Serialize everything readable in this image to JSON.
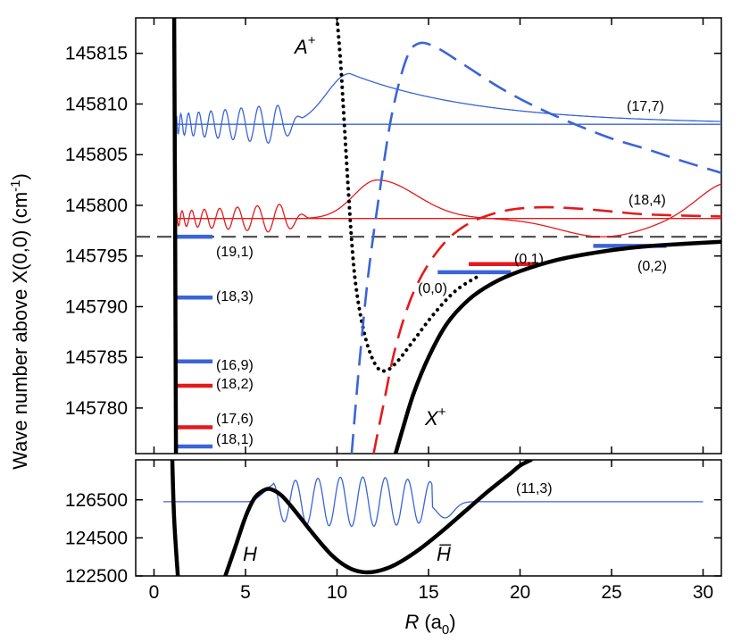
{
  "chart_data": [
    {
      "type": "line",
      "panel": "upper",
      "ylabel": "Wave number above X(0,0) (cm⁻¹)",
      "ylim": [
        145775.5,
        145818.5
      ],
      "xlim": [
        -1,
        31
      ],
      "yticks": [
        145780,
        145785,
        145790,
        145795,
        145800,
        145805,
        145810,
        145815
      ],
      "ytick_labels": [
        "145780",
        "145785",
        "145790",
        "145795",
        "145800",
        "145805",
        "145810",
        "145815"
      ],
      "dashed_reference": {
        "y": 145796.9,
        "color": "#555555"
      },
      "curves": [
        {
          "label": "A⁺",
          "style": "dotted",
          "color": "#000000",
          "points": [
            [
              10.0,
              145818.5
            ],
            [
              10.2,
              145814
            ],
            [
              10.4,
              145808
            ],
            [
              10.6,
              145802
            ],
            [
              10.8,
              145796.5
            ],
            [
              11.0,
              145792.5
            ],
            [
              11.3,
              145789
            ],
            [
              11.7,
              145786
            ],
            [
              12.2,
              145784
            ],
            [
              12.7,
              145783.7
            ],
            [
              13.3,
              145784.6
            ],
            [
              14.2,
              145786.7
            ],
            [
              15.3,
              145789.3
            ],
            [
              16.5,
              145791.6
            ],
            [
              17.8,
              145793.1
            ]
          ]
        },
        {
          "label": "X⁺",
          "style": "solid-thick",
          "color": "#000000",
          "points": [
            [
              13.2,
              145775.5
            ],
            [
              13.6,
              145778
            ],
            [
              14.2,
              145781.5
            ],
            [
              15.0,
              145785
            ],
            [
              16.0,
              145788.3
            ],
            [
              17.2,
              145790.7
            ],
            [
              18.5,
              145792.3
            ],
            [
              20.0,
              145793.5
            ],
            [
              22.0,
              145794.6
            ],
            [
              24.0,
              145795.3
            ],
            [
              26.0,
              145795.8
            ],
            [
              28.0,
              145796.1
            ],
            [
              31.0,
              145796.4
            ]
          ]
        },
        {
          "label": "",
          "style": "solid-thick",
          "color": "#000000",
          "points": [
            [
              1.1,
              145818.5
            ],
            [
              1.15,
              145800
            ],
            [
              1.2,
              145775.5
            ]
          ]
        },
        {
          "label": "",
          "style": "dashed",
          "color": "#3a64d8",
          "points": [
            [
              10.8,
              145775.5
            ],
            [
              11.2,
              145784
            ],
            [
              11.7,
              145793
            ],
            [
              12.3,
              145801
            ],
            [
              13.0,
              145809
            ],
            [
              13.8,
              145814.5
            ],
            [
              14.5,
              145816
            ],
            [
              15.5,
              145815.5
            ],
            [
              17.0,
              145813.8
            ],
            [
              19.0,
              145811.5
            ],
            [
              21.0,
              145809.6
            ],
            [
              23.0,
              145808
            ],
            [
              25.0,
              145806.6
            ],
            [
              27.0,
              145805.5
            ],
            [
              29.0,
              145804.3
            ],
            [
              31.0,
              145803.2
            ]
          ]
        },
        {
          "label": "",
          "style": "dashed",
          "color": "#e31a1c",
          "points": [
            [
              12.0,
              145775.5
            ],
            [
              12.5,
              145780
            ],
            [
              13.2,
              145786
            ],
            [
              14.2,
              145791.5
            ],
            [
              15.5,
              145795.5
            ],
            [
              17.0,
              145798
            ],
            [
              19.0,
              145799.4
            ],
            [
              21.0,
              145799.8
            ],
            [
              23.0,
              145799.7
            ],
            [
              25.0,
              145799.4
            ],
            [
              27.0,
              145799.1
            ],
            [
              31.0,
              145798.9
            ]
          ]
        }
      ],
      "eigenstates": [
        {
          "label": "(17,7)",
          "color": "#3a64d8",
          "energy": 145808,
          "wavefunction": {
            "x_start": 1.2,
            "x_end": 31.0,
            "peak_x": 10.7,
            "peak_amp": 5.0,
            "osc_end": 8.2,
            "osc_amp": 2.2,
            "osc_count": 9.5,
            "decay": 7.0
          }
        },
        {
          "label": "(18,4)",
          "color": "#e31a1c",
          "energy": 145798.7,
          "wavefunction": {
            "x_start": 1.2,
            "x_end": 31.0,
            "peak_x": 12.2,
            "peak_amp": 3.8,
            "osc_end": 8.5,
            "osc_amp": 1.6,
            "osc_count": 8.5,
            "far_amp": 3.6
          }
        },
        {
          "label": "(19,1)",
          "color": "#3a64d8",
          "energy": 145796.9,
          "x_range": [
            1.2,
            3.2
          ]
        },
        {
          "label": "(18,3)",
          "color": "#3a64d8",
          "energy": 145790.9,
          "x_range": [
            1.2,
            3.2
          ]
        },
        {
          "label": "(16,9)",
          "color": "#3a64d8",
          "energy": 145784.6,
          "x_range": [
            1.2,
            3.2
          ]
        },
        {
          "label": "(18,2)",
          "color": "#e31a1c",
          "energy": 145782.2,
          "x_range": [
            1.2,
            3.2
          ]
        },
        {
          "label": "(17,6)",
          "color": "#e31a1c",
          "energy": 145778.1,
          "x_range": [
            1.2,
            3.2
          ]
        },
        {
          "label": "(18,1)",
          "color": "#3a64d8",
          "energy": 145776.2,
          "x_range": [
            1.2,
            3.2
          ]
        },
        {
          "label": "(0,0)",
          "color": "#3a64d8",
          "energy": 145793.4,
          "x_range": [
            15.5,
            19.5
          ]
        },
        {
          "label": "(0,1)",
          "color": "#e31a1c",
          "energy": 145794.2,
          "x_range": [
            17.2,
            21.0
          ]
        },
        {
          "label": "(0,2)",
          "color": "#3a64d8",
          "energy": 145796.0,
          "x_range": [
            24.0,
            28.0
          ]
        }
      ]
    },
    {
      "type": "line",
      "panel": "lower",
      "xlabel": "R (a₀)",
      "xlim": [
        -1,
        31
      ],
      "ylim": [
        122500,
        128600
      ],
      "xticks": [
        0,
        5,
        10,
        15,
        20,
        25,
        30
      ],
      "xtick_labels": [
        "0",
        "5",
        "10",
        "15",
        "20",
        "25",
        "30"
      ],
      "yticks": [
        122500,
        124500,
        126500
      ],
      "ytick_labels": [
        "122500",
        "124500",
        "126500"
      ],
      "curves": [
        {
          "label": "H H̅",
          "style": "solid-thick",
          "color": "#000000",
          "points": [
            [
              3.9,
              122500
            ],
            [
              4.4,
              123900
            ],
            [
              5.0,
              125600
            ],
            [
              5.5,
              126600
            ],
            [
              6.0,
              127000
            ],
            [
              6.4,
              127050
            ],
            [
              7.0,
              126700
            ],
            [
              7.8,
              125800
            ],
            [
              8.7,
              124700
            ],
            [
              9.7,
              123600
            ],
            [
              10.6,
              122950
            ],
            [
              11.4,
              122700
            ],
            [
              12.2,
              122750
            ],
            [
              13.2,
              123100
            ],
            [
              14.5,
              123900
            ],
            [
              15.8,
              124900
            ],
            [
              17.0,
              125900
            ],
            [
              18.2,
              126900
            ],
            [
              19.5,
              127900
            ],
            [
              20.0,
              128300
            ],
            [
              20.6,
              128600
            ]
          ]
        },
        {
          "label": "",
          "style": "solid-thick",
          "color": "#000000",
          "points": [
            [
              1.0,
              128600
            ],
            [
              1.1,
              125500
            ],
            [
              1.3,
              122500
            ]
          ]
        }
      ],
      "eigenstates": [
        {
          "label": "(11,3)",
          "color": "#3a64d8",
          "energy": 126400,
          "wavefunction": {
            "x_start": 0.5,
            "x_end": 30.0,
            "osc_start": 6.5,
            "osc_end": 15.7,
            "osc_amp": 1300,
            "osc_count": 7.5,
            "dip_x": 15.7,
            "dip_amp": 850
          }
        }
      ]
    }
  ],
  "labels": {
    "ylabel": "Wave number above X(0,0) (cm",
    "ylabel_sup": "-1",
    "ylabel_end": ")",
    "xlabel_R": "R",
    "xlabel_unit": "(a",
    "xlabel_sub": "0",
    "xlabel_end": ")",
    "a_plus": "A",
    "a_plus_sup": "+",
    "x_plus": "X",
    "x_plus_sup": "+",
    "h": "H",
    "h_bar": "H̅"
  }
}
